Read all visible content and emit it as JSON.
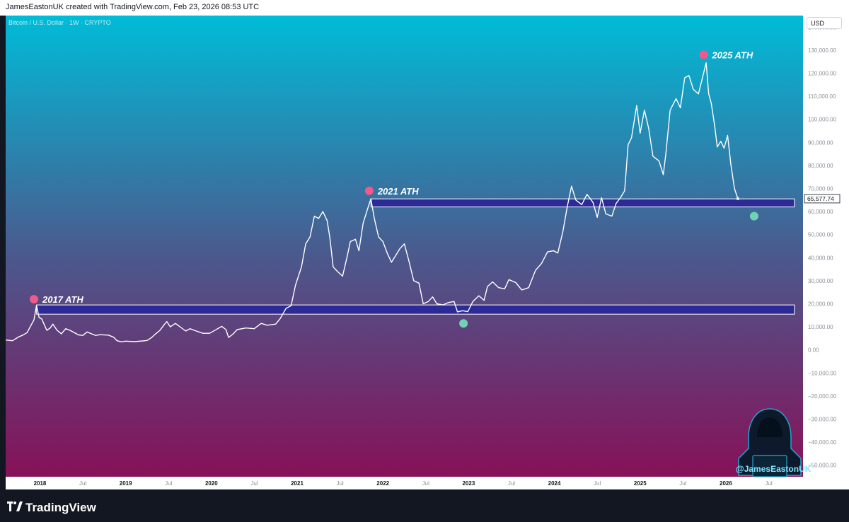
{
  "header": {
    "credit": "JamesEastonUK created with TradingView.com, Feb 23, 2026 08:53 UTC"
  },
  "symbol": {
    "title": "Bitcoin / U.S. Dollar · 1W · CRYPTO"
  },
  "currency_button": "USD",
  "watermark_handle": "@JamesEastonUK",
  "footer": {
    "brand": "TradingView"
  },
  "colors": {
    "gradient_top": "#00bcd8",
    "gradient_mid": "#4a5a8e",
    "gradient_bottom": "#8a0d55",
    "line": "#ffffff",
    "zone_fill": "#2b2a96",
    "ath_marker": "#f0598a",
    "low_marker": "#6fd4b4"
  },
  "chart_data": {
    "type": "line",
    "title": "Bitcoin / U.S. Dollar · 1W · CRYPTO",
    "xlabel": "",
    "ylabel": "",
    "ylim": [
      -55000,
      145000
    ],
    "xlim": [
      2017.6,
      2026.9
    ],
    "y_ticks": [
      {
        "value": 140000,
        "label": "140,000.00"
      },
      {
        "value": 130000,
        "label": "130,000.00"
      },
      {
        "value": 120000,
        "label": "120,000.00"
      },
      {
        "value": 110000,
        "label": "110,000.00"
      },
      {
        "value": 100000,
        "label": "100,000.00"
      },
      {
        "value": 90000,
        "label": "90,000.00"
      },
      {
        "value": 80000,
        "label": "80,000.00"
      },
      {
        "value": 70000,
        "label": "70,000.00"
      },
      {
        "value": 60000,
        "label": "60,000.00"
      },
      {
        "value": 50000,
        "label": "50,000.00"
      },
      {
        "value": 40000,
        "label": "40,000.00"
      },
      {
        "value": 30000,
        "label": "30,000.00"
      },
      {
        "value": 20000,
        "label": "20,000.00"
      },
      {
        "value": 10000,
        "label": "10,000.00"
      },
      {
        "value": 0,
        "label": "0.00"
      },
      {
        "value": -10000,
        "label": "−10,000.00"
      },
      {
        "value": -20000,
        "label": "−20,000.00"
      },
      {
        "value": -30000,
        "label": "−30,000.00"
      },
      {
        "value": -40000,
        "label": "−40,000.00"
      },
      {
        "value": -50000,
        "label": "−50,000.00"
      }
    ],
    "x_ticks": [
      {
        "value": 2018.0,
        "label": "2018"
      },
      {
        "value": 2018.5,
        "label": "Jul"
      },
      {
        "value": 2019.0,
        "label": "2019"
      },
      {
        "value": 2019.5,
        "label": "Jul"
      },
      {
        "value": 2020.0,
        "label": "2020"
      },
      {
        "value": 2020.5,
        "label": "Jul"
      },
      {
        "value": 2021.0,
        "label": "2021"
      },
      {
        "value": 2021.5,
        "label": "Jul"
      },
      {
        "value": 2022.0,
        "label": "2022"
      },
      {
        "value": 2022.5,
        "label": "Jul"
      },
      {
        "value": 2023.0,
        "label": "2023"
      },
      {
        "value": 2023.5,
        "label": "Jul"
      },
      {
        "value": 2024.0,
        "label": "2024"
      },
      {
        "value": 2024.5,
        "label": "Jul"
      },
      {
        "value": 2025.0,
        "label": "2025"
      },
      {
        "value": 2025.5,
        "label": "Jul"
      },
      {
        "value": 2026.0,
        "label": "2026"
      },
      {
        "value": 2026.5,
        "label": "Jul"
      }
    ],
    "grid": false,
    "series": [
      {
        "name": "",
        "points": [
          [
            2017.6,
            4300
          ],
          [
            2017.68,
            4000
          ],
          [
            2017.75,
            5600
          ],
          [
            2017.8,
            6400
          ],
          [
            2017.85,
            7500
          ],
          [
            2017.9,
            11000
          ],
          [
            2017.93,
            13000
          ],
          [
            2017.96,
            19300
          ],
          [
            2017.99,
            14000
          ],
          [
            2018.02,
            13500
          ],
          [
            2018.05,
            11000
          ],
          [
            2018.08,
            8500
          ],
          [
            2018.12,
            9500
          ],
          [
            2018.15,
            11200
          ],
          [
            2018.2,
            8500
          ],
          [
            2018.25,
            7000
          ],
          [
            2018.3,
            9200
          ],
          [
            2018.35,
            8500
          ],
          [
            2018.4,
            7500
          ],
          [
            2018.45,
            6500
          ],
          [
            2018.5,
            6300
          ],
          [
            2018.55,
            7800
          ],
          [
            2018.6,
            7000
          ],
          [
            2018.65,
            6300
          ],
          [
            2018.7,
            6600
          ],
          [
            2018.8,
            6400
          ],
          [
            2018.86,
            5500
          ],
          [
            2018.9,
            4000
          ],
          [
            2018.95,
            3500
          ],
          [
            2019.0,
            3800
          ],
          [
            2019.1,
            3600
          ],
          [
            2019.2,
            3900
          ],
          [
            2019.25,
            4100
          ],
          [
            2019.3,
            5300
          ],
          [
            2019.35,
            7000
          ],
          [
            2019.4,
            8500
          ],
          [
            2019.45,
            11000
          ],
          [
            2019.48,
            12300
          ],
          [
            2019.52,
            10000
          ],
          [
            2019.58,
            11500
          ],
          [
            2019.62,
            10400
          ],
          [
            2019.7,
            8200
          ],
          [
            2019.75,
            9200
          ],
          [
            2019.8,
            8500
          ],
          [
            2019.9,
            7200
          ],
          [
            2019.98,
            7200
          ],
          [
            2020.05,
            8700
          ],
          [
            2020.12,
            10200
          ],
          [
            2020.17,
            8800
          ],
          [
            2020.2,
            5400
          ],
          [
            2020.25,
            6800
          ],
          [
            2020.3,
            8800
          ],
          [
            2020.4,
            9500
          ],
          [
            2020.5,
            9200
          ],
          [
            2020.58,
            11500
          ],
          [
            2020.65,
            10700
          ],
          [
            2020.75,
            11200
          ],
          [
            2020.8,
            13500
          ],
          [
            2020.87,
            18000
          ],
          [
            2020.93,
            19200
          ],
          [
            2020.98,
            28000
          ],
          [
            2021.05,
            36000
          ],
          [
            2021.1,
            46000
          ],
          [
            2021.15,
            49000
          ],
          [
            2021.2,
            58000
          ],
          [
            2021.25,
            57000
          ],
          [
            2021.3,
            60000
          ],
          [
            2021.35,
            56000
          ],
          [
            2021.38,
            49000
          ],
          [
            2021.42,
            36000
          ],
          [
            2021.47,
            34000
          ],
          [
            2021.53,
            32000
          ],
          [
            2021.58,
            40000
          ],
          [
            2021.62,
            47000
          ],
          [
            2021.68,
            48000
          ],
          [
            2021.72,
            43000
          ],
          [
            2021.77,
            55000
          ],
          [
            2021.82,
            61000
          ],
          [
            2021.86,
            65500
          ],
          [
            2021.9,
            57000
          ],
          [
            2021.95,
            49000
          ],
          [
            2022.0,
            47000
          ],
          [
            2022.05,
            42000
          ],
          [
            2022.1,
            38000
          ],
          [
            2022.15,
            41000
          ],
          [
            2022.2,
            44000
          ],
          [
            2022.25,
            46000
          ],
          [
            2022.3,
            39000
          ],
          [
            2022.36,
            30000
          ],
          [
            2022.42,
            29000
          ],
          [
            2022.47,
            20000
          ],
          [
            2022.53,
            21000
          ],
          [
            2022.58,
            23000
          ],
          [
            2022.63,
            20000
          ],
          [
            2022.7,
            19500
          ],
          [
            2022.76,
            20500
          ],
          [
            2022.83,
            21000
          ],
          [
            2022.87,
            16500
          ],
          [
            2022.93,
            17000
          ],
          [
            2022.99,
            16600
          ],
          [
            2023.05,
            21000
          ],
          [
            2023.12,
            23500
          ],
          [
            2023.18,
            21500
          ],
          [
            2023.22,
            27500
          ],
          [
            2023.28,
            29500
          ],
          [
            2023.35,
            27000
          ],
          [
            2023.42,
            26500
          ],
          [
            2023.47,
            30500
          ],
          [
            2023.55,
            29200
          ],
          [
            2023.62,
            26000
          ],
          [
            2023.7,
            27000
          ],
          [
            2023.78,
            34500
          ],
          [
            2023.85,
            37500
          ],
          [
            2023.92,
            42500
          ],
          [
            2023.99,
            43000
          ],
          [
            2024.04,
            42000
          ],
          [
            2024.1,
            51500
          ],
          [
            2024.15,
            62000
          ],
          [
            2024.2,
            71000
          ],
          [
            2024.25,
            65000
          ],
          [
            2024.32,
            63000
          ],
          [
            2024.38,
            67500
          ],
          [
            2024.45,
            64000
          ],
          [
            2024.5,
            57500
          ],
          [
            2024.55,
            66000
          ],
          [
            2024.6,
            59000
          ],
          [
            2024.67,
            58000
          ],
          [
            2024.72,
            63500
          ],
          [
            2024.77,
            66000
          ],
          [
            2024.82,
            69000
          ],
          [
            2024.86,
            89000
          ],
          [
            2024.9,
            92000
          ],
          [
            2024.96,
            106000
          ],
          [
            2025.0,
            94000
          ],
          [
            2025.05,
            104000
          ],
          [
            2025.1,
            96000
          ],
          [
            2025.15,
            84000
          ],
          [
            2025.22,
            82000
          ],
          [
            2025.27,
            76000
          ],
          [
            2025.3,
            85000
          ],
          [
            2025.35,
            104000
          ],
          [
            2025.42,
            109000
          ],
          [
            2025.47,
            105000
          ],
          [
            2025.52,
            118000
          ],
          [
            2025.57,
            119000
          ],
          [
            2025.62,
            113000
          ],
          [
            2025.68,
            111000
          ],
          [
            2025.72,
            117000
          ],
          [
            2025.77,
            124500
          ],
          [
            2025.8,
            111000
          ],
          [
            2025.83,
            107000
          ],
          [
            2025.87,
            97000
          ],
          [
            2025.9,
            88000
          ],
          [
            2025.94,
            90500
          ],
          [
            2025.98,
            87500
          ],
          [
            2026.02,
            93000
          ],
          [
            2026.06,
            80000
          ],
          [
            2026.1,
            70000
          ],
          [
            2026.14,
            65577.74
          ]
        ]
      }
    ],
    "current_price": {
      "value": 65577.74,
      "label": "65,577.74"
    },
    "zones": [
      {
        "x_start": 2017.96,
        "x_end": 2026.8,
        "y_low": 15500,
        "y_high": 19500
      },
      {
        "x_start": 2021.86,
        "x_end": 2026.8,
        "y_low": 62000,
        "y_high": 65500
      }
    ],
    "annotations": [
      {
        "label": "2017 ATH",
        "x": 2017.93,
        "y": 22000,
        "kind": "ath"
      },
      {
        "label": "2021 ATH",
        "x": 2021.84,
        "y": 69000,
        "kind": "ath"
      },
      {
        "label": "2025 ATH",
        "x": 2025.74,
        "y": 128000,
        "kind": "ath"
      }
    ],
    "markers": [
      {
        "x": 2022.94,
        "y": 11500,
        "kind": "low"
      },
      {
        "x": 2026.33,
        "y": 58000,
        "kind": "low"
      }
    ]
  }
}
